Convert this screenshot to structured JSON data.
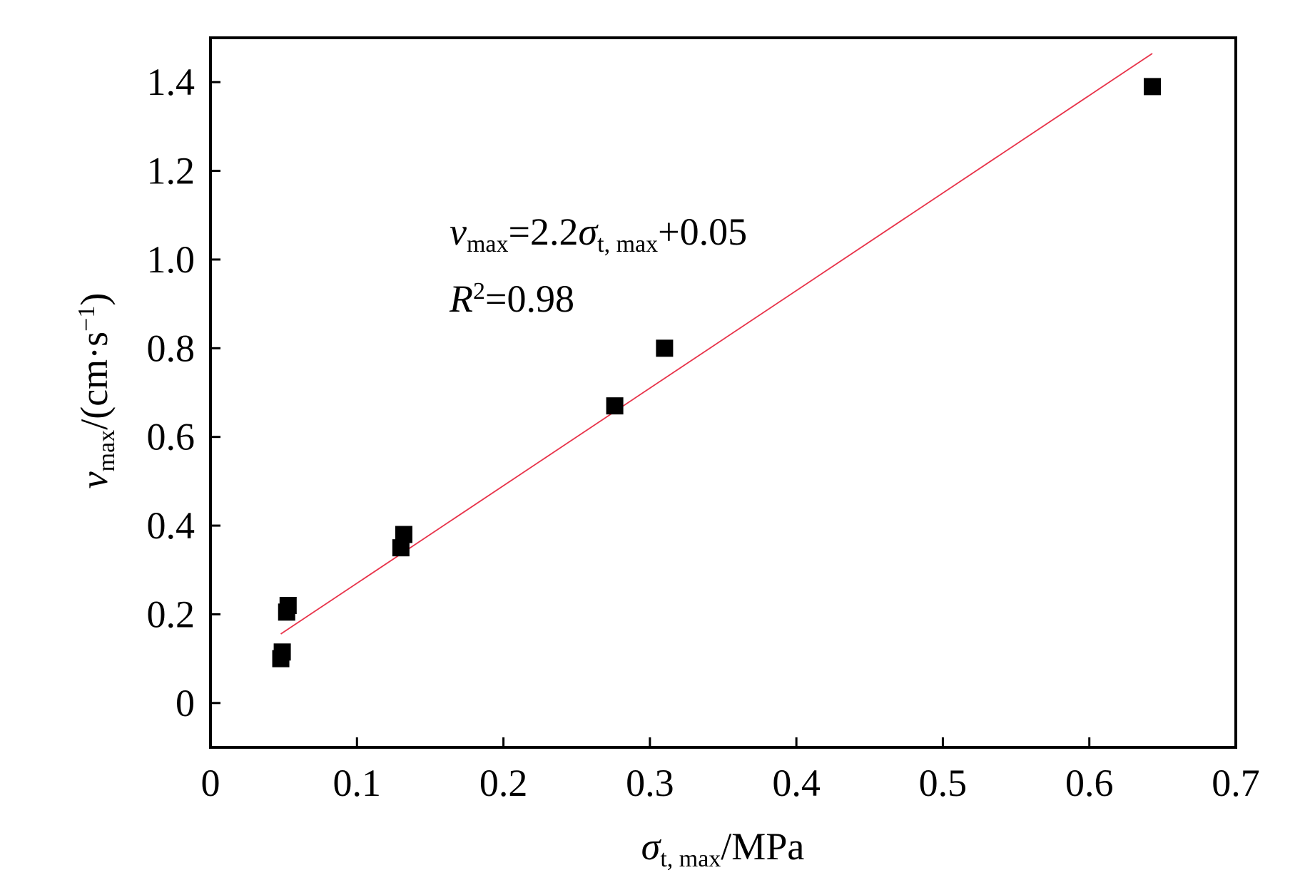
{
  "chart_data": {
    "type": "scatter",
    "title": "",
    "xlabel": {
      "symbol": "σ",
      "subscript": "t, max",
      "unit": "/MPa"
    },
    "ylabel": {
      "symbol": "v",
      "subscript": "max",
      "unit_open": "/(cm·s",
      "unit_sup": "−1",
      "unit_close": ")"
    },
    "xlim": [
      0,
      0.7
    ],
    "ylim": [
      -0.1,
      1.5
    ],
    "x_ticks": [
      "0",
      "0.1",
      "0.2",
      "0.3",
      "0.4",
      "0.5",
      "0.6",
      "0.7"
    ],
    "x_tick_values": [
      0,
      0.1,
      0.2,
      0.3,
      0.4,
      0.5,
      0.6,
      0.7
    ],
    "y_ticks": [
      "0",
      "0.2",
      "0.4",
      "0.6",
      "0.8",
      "1.0",
      "1.2",
      "1.4"
    ],
    "y_tick_values": [
      0,
      0.2,
      0.4,
      0.6,
      0.8,
      1.0,
      1.2,
      1.4
    ],
    "grid": false,
    "series": [
      {
        "points": [
          {
            "x": 0.048,
            "y": 0.1
          },
          {
            "x": 0.049,
            "y": 0.115
          },
          {
            "x": 0.052,
            "y": 0.205
          },
          {
            "x": 0.053,
            "y": 0.22
          },
          {
            "x": 0.13,
            "y": 0.35
          },
          {
            "x": 0.132,
            "y": 0.38
          },
          {
            "x": 0.276,
            "y": 0.67
          },
          {
            "x": 0.31,
            "y": 0.8
          },
          {
            "x": 0.643,
            "y": 1.39
          }
        ],
        "marker": "square",
        "color": "#000000"
      }
    ],
    "fit": {
      "slope": 2.2,
      "intercept": 0.05,
      "x_range": [
        0.048,
        0.643
      ],
      "color": "#e8334a"
    },
    "annotation": {
      "eq_var": "v",
      "eq_var_sub": "max",
      "eq_mid": "=2.2",
      "eq_sigma": "σ",
      "eq_sigma_sub": "t, max",
      "eq_tail": "+0.05",
      "r_var": "R",
      "r_sup": "2",
      "r_tail": "=0.98"
    }
  }
}
